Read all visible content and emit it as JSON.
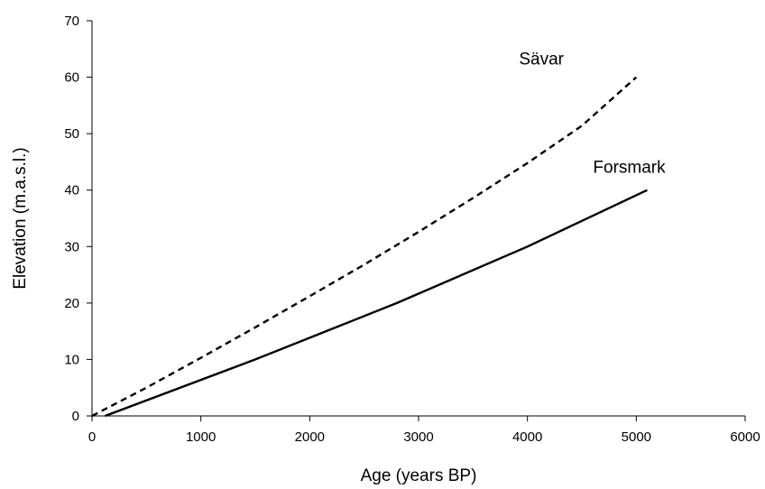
{
  "chart_data": {
    "type": "line",
    "title": "",
    "xlabel": "Age (years BP)",
    "ylabel": "Elevation (m.a.s.l.)",
    "xlim": [
      0,
      6000
    ],
    "ylim": [
      0,
      70
    ],
    "xticks": [
      0,
      1000,
      2000,
      3000,
      4000,
      5000,
      6000
    ],
    "yticks": [
      0,
      10,
      20,
      30,
      40,
      50,
      60,
      70
    ],
    "grid": false,
    "legend": "none",
    "series": [
      {
        "name": "Sävar",
        "line_style": "dashed",
        "color": "#000000",
        "x": [
          0,
          500,
          1000,
          1500,
          2000,
          2500,
          3000,
          3500,
          4000,
          4500,
          5000
        ],
        "y": [
          0,
          5,
          10.3,
          15.7,
          21.2,
          26.8,
          32.6,
          38.6,
          44.8,
          51.4,
          60
        ]
      },
      {
        "name": "Forsmark",
        "line_style": "solid",
        "color": "#000000",
        "x": [
          120,
          1500,
          2800,
          4000,
          5100
        ],
        "y": [
          0,
          10,
          20,
          30,
          40
        ]
      }
    ]
  }
}
